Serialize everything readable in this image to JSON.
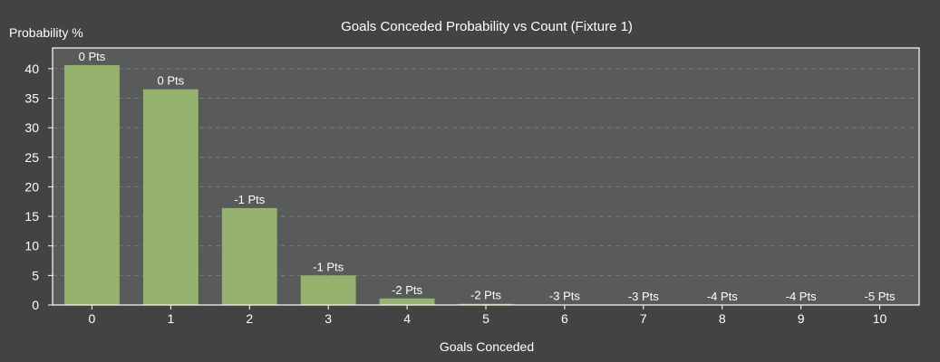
{
  "chart_data": {
    "type": "bar",
    "title": "Goals Conceded Probability vs Count (Fixture 1)",
    "xlabel": "Goals Conceded",
    "ylabel": "Probability %",
    "categories": [
      "0",
      "1",
      "2",
      "3",
      "4",
      "5",
      "6",
      "7",
      "8",
      "9",
      "10"
    ],
    "series": [
      {
        "values": [
          40.6,
          36.5,
          16.4,
          5.0,
          1.1,
          0.2,
          0.04,
          0.01,
          0.0,
          0.0,
          0.0
        ],
        "data_labels": [
          "0 Pts",
          "0 Pts",
          "-1 Pts",
          "-1 Pts",
          "-2 Pts",
          "-2 Pts",
          "-3 Pts",
          "-3 Pts",
          "-4 Pts",
          "-4 Pts",
          "-5 Pts"
        ]
      }
    ],
    "ylim": [
      0,
      43.5
    ],
    "yticks": [
      0,
      5,
      10,
      15,
      20,
      25,
      30,
      35,
      40
    ],
    "grid": true,
    "legend": "none",
    "colors": {
      "background": "#434343",
      "plot_background": "#595b5b",
      "bar": "#95b26e",
      "plot_border": "#ffffff",
      "grid": "#7a7c7c",
      "text": "#ffffff"
    }
  }
}
